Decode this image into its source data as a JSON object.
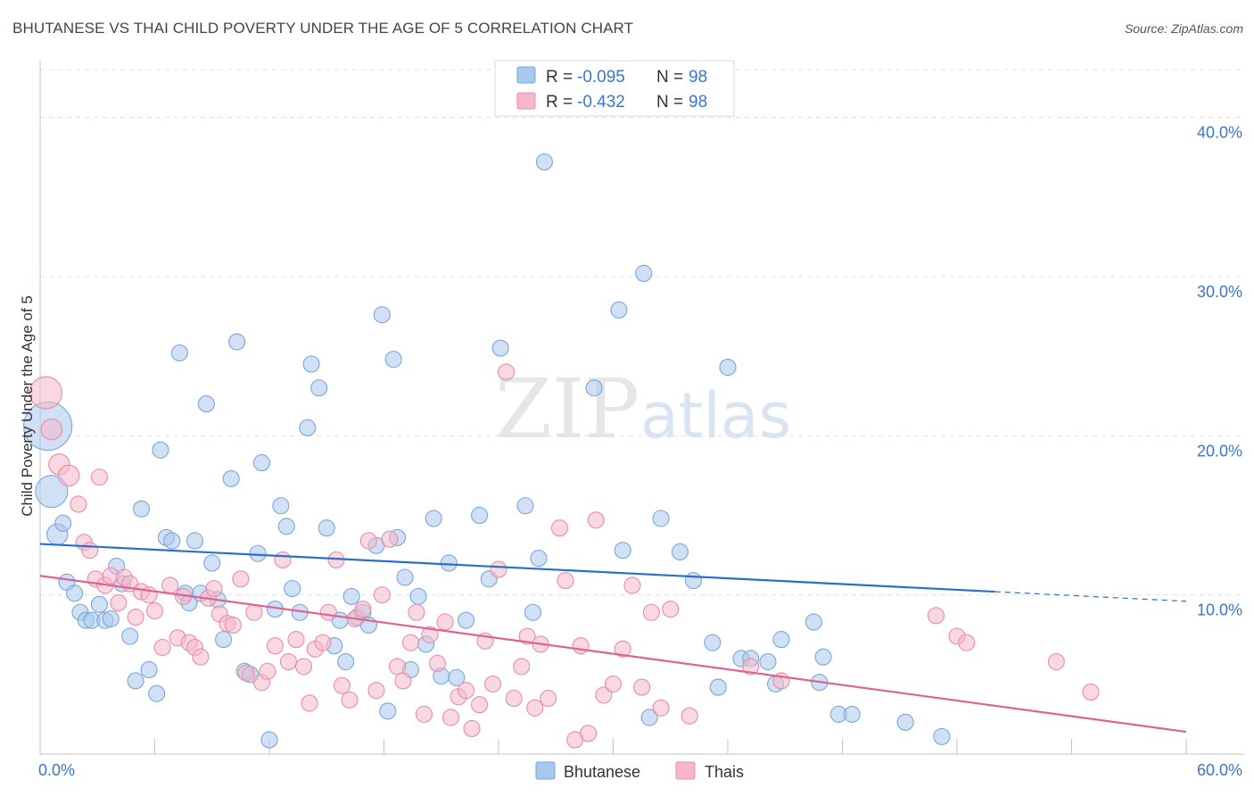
{
  "title": "BHUTANESE VS THAI CHILD POVERTY UNDER THE AGE OF 5 CORRELATION CHART",
  "source": "Source: ZipAtlas.com",
  "watermark": {
    "zip": "ZIP",
    "atlas": "atlas"
  },
  "colors": {
    "blue_fill": "#a9c8ee",
    "blue_stroke": "#7aa6da",
    "blue_line": "#2a6fc9",
    "pink_fill": "#f5b8cb",
    "pink_stroke": "#e98cab",
    "pink_line": "#e0638f",
    "tick_label": "#3a77c9",
    "grid": "#dde1e6",
    "axis": "#bfc4ca"
  },
  "legend_top": {
    "rows": [
      {
        "r_label": "R =",
        "r_value": "-0.095",
        "n_label": "N =",
        "n_value": "98",
        "series": "blue"
      },
      {
        "r_label": "R =",
        "r_value": "-0.432",
        "n_label": "N =",
        "n_value": "98",
        "series": "pink"
      }
    ]
  },
  "chart_data": {
    "type": "scatter",
    "title": "BHUTANESE VS THAI CHILD POVERTY UNDER THE AGE OF 5 CORRELATION CHART",
    "xlabel": "",
    "ylabel": "Child Poverty Under the Age of 5",
    "xlim": [
      0,
      60
    ],
    "ylim": [
      0,
      43
    ],
    "x_tick_labels": [
      "0.0%",
      "60.0%"
    ],
    "y_ticks": [
      10,
      20,
      30,
      40
    ],
    "y_tick_labels": [
      "10.0%",
      "20.0%",
      "30.0%",
      "40.0%"
    ],
    "grid": true,
    "legend_position": "bottom-center",
    "series": [
      {
        "name": "Bhutanese",
        "color": "#a9c8ee",
        "r": -0.095,
        "n": 98,
        "trend": {
          "x0": 0,
          "y0": 13.2,
          "x1": 50,
          "y1": 10.2,
          "dashed_to_x": 60,
          "dashed_to_y": 9.6
        },
        "points": [
          [
            0.4,
            20.6,
            3
          ],
          [
            0.6,
            16.5,
            2
          ],
          [
            0.9,
            13.8,
            1.3
          ],
          [
            1.2,
            14.5,
            1
          ],
          [
            1.4,
            10.8,
            1
          ],
          [
            1.8,
            10.1,
            1
          ],
          [
            2.1,
            8.9,
            1
          ],
          [
            2.4,
            8.4,
            1
          ],
          [
            2.7,
            8.4,
            1
          ],
          [
            3.1,
            9.4,
            1
          ],
          [
            3.4,
            8.4,
            1
          ],
          [
            3.7,
            8.5,
            1
          ],
          [
            4.0,
            11.8,
            1
          ],
          [
            4.3,
            10.7,
            1
          ],
          [
            4.7,
            7.4,
            1
          ],
          [
            5.0,
            4.6,
            1
          ],
          [
            5.3,
            15.4,
            1
          ],
          [
            5.7,
            5.3,
            1
          ],
          [
            6.1,
            3.8,
            1
          ],
          [
            6.3,
            19.1,
            1
          ],
          [
            6.6,
            13.6,
            1
          ],
          [
            6.9,
            13.4,
            1
          ],
          [
            7.3,
            25.2,
            1
          ],
          [
            7.6,
            10.1,
            1
          ],
          [
            7.8,
            9.5,
            1
          ],
          [
            8.1,
            13.4,
            1
          ],
          [
            8.4,
            10.1,
            1
          ],
          [
            8.7,
            22.0,
            1
          ],
          [
            9.0,
            12.0,
            1
          ],
          [
            9.3,
            9.7,
            1
          ],
          [
            9.6,
            7.2,
            1
          ],
          [
            10.0,
            17.3,
            1
          ],
          [
            10.3,
            25.9,
            1
          ],
          [
            10.7,
            5.2,
            1
          ],
          [
            11.0,
            5.0,
            1
          ],
          [
            11.4,
            12.6,
            1
          ],
          [
            11.6,
            18.3,
            1
          ],
          [
            12.0,
            0.9,
            1
          ],
          [
            12.3,
            9.1,
            1
          ],
          [
            12.6,
            15.6,
            1
          ],
          [
            12.9,
            14.3,
            1
          ],
          [
            13.2,
            10.4,
            1
          ],
          [
            13.6,
            8.9,
            1
          ],
          [
            14.0,
            20.5,
            1
          ],
          [
            14.2,
            24.5,
            1
          ],
          [
            14.6,
            23.0,
            1
          ],
          [
            15.0,
            14.2,
            1
          ],
          [
            15.4,
            6.8,
            1
          ],
          [
            15.7,
            8.4,
            1
          ],
          [
            16.0,
            5.8,
            1
          ],
          [
            16.3,
            9.9,
            1
          ],
          [
            16.6,
            8.6,
            1
          ],
          [
            16.9,
            8.9,
            1
          ],
          [
            17.2,
            8.1,
            1
          ],
          [
            17.6,
            13.1,
            1
          ],
          [
            17.9,
            27.6,
            1
          ],
          [
            18.2,
            2.7,
            1
          ],
          [
            18.5,
            24.8,
            1
          ],
          [
            18.7,
            13.6,
            1
          ],
          [
            19.1,
            11.1,
            1
          ],
          [
            19.4,
            5.3,
            1
          ],
          [
            19.8,
            9.9,
            1
          ],
          [
            20.2,
            6.9,
            1
          ],
          [
            20.6,
            14.8,
            1
          ],
          [
            21.0,
            4.9,
            1
          ],
          [
            21.4,
            12.0,
            1
          ],
          [
            21.8,
            4.8,
            1
          ],
          [
            22.3,
            8.4,
            1
          ],
          [
            23.0,
            15.0,
            1
          ],
          [
            23.5,
            11.0,
            1
          ],
          [
            24.1,
            25.5,
            1
          ],
          [
            25.4,
            15.6,
            1
          ],
          [
            25.8,
            8.9,
            1
          ],
          [
            26.1,
            12.3,
            1
          ],
          [
            26.4,
            37.2,
            1
          ],
          [
            29.0,
            23.0,
            1
          ],
          [
            30.3,
            27.9,
            1
          ],
          [
            30.5,
            12.8,
            1
          ],
          [
            31.6,
            30.2,
            1
          ],
          [
            31.9,
            2.3,
            1
          ],
          [
            32.5,
            14.8,
            1
          ],
          [
            33.5,
            12.7,
            1
          ],
          [
            34.2,
            10.9,
            1
          ],
          [
            35.2,
            7.0,
            1
          ],
          [
            35.5,
            4.2,
            1
          ],
          [
            36.0,
            24.3,
            1
          ],
          [
            36.7,
            6.0,
            1
          ],
          [
            37.2,
            6.0,
            1
          ],
          [
            38.1,
            5.8,
            1
          ],
          [
            38.5,
            4.4,
            1
          ],
          [
            38.8,
            7.2,
            1
          ],
          [
            40.5,
            8.3,
            1
          ],
          [
            41.0,
            6.1,
            1
          ],
          [
            40.8,
            4.5,
            1
          ],
          [
            41.8,
            2.5,
            1
          ],
          [
            42.5,
            2.5,
            1
          ],
          [
            45.3,
            2.0,
            1
          ],
          [
            47.2,
            1.1,
            1
          ]
        ]
      },
      {
        "name": "Thais",
        "color": "#f5b8cb",
        "r": -0.432,
        "n": 98,
        "trend": {
          "x0": 0,
          "y0": 11.2,
          "x1": 60,
          "y1": 1.4
        },
        "points": [
          [
            0.3,
            22.7,
            2
          ],
          [
            0.6,
            20.4,
            1.3
          ],
          [
            1.0,
            18.2,
            1.3
          ],
          [
            1.5,
            17.5,
            1.3
          ],
          [
            2.0,
            15.7,
            1
          ],
          [
            2.3,
            13.3,
            1
          ],
          [
            2.6,
            12.8,
            1
          ],
          [
            2.9,
            11.0,
            1
          ],
          [
            3.1,
            17.4,
            1
          ],
          [
            3.4,
            10.6,
            1
          ],
          [
            3.7,
            11.2,
            1
          ],
          [
            4.1,
            9.5,
            1
          ],
          [
            4.4,
            11.1,
            1
          ],
          [
            4.7,
            10.7,
            1
          ],
          [
            5.0,
            8.6,
            1
          ],
          [
            5.3,
            10.2,
            1
          ],
          [
            5.7,
            10.0,
            1
          ],
          [
            6.0,
            9.0,
            1
          ],
          [
            6.4,
            6.7,
            1
          ],
          [
            6.8,
            10.6,
            1
          ],
          [
            7.2,
            7.3,
            1
          ],
          [
            7.5,
            9.9,
            1
          ],
          [
            7.8,
            7.0,
            1
          ],
          [
            8.1,
            6.7,
            1
          ],
          [
            8.4,
            6.1,
            1
          ],
          [
            8.8,
            9.8,
            1
          ],
          [
            9.1,
            10.4,
            1
          ],
          [
            9.4,
            8.8,
            1
          ],
          [
            9.8,
            8.2,
            1
          ],
          [
            10.1,
            8.1,
            1
          ],
          [
            10.5,
            11.0,
            1
          ],
          [
            10.8,
            5.1,
            1
          ],
          [
            11.2,
            8.9,
            1
          ],
          [
            11.6,
            4.5,
            1
          ],
          [
            11.9,
            5.2,
            1
          ],
          [
            12.3,
            6.8,
            1
          ],
          [
            12.7,
            12.2,
            1
          ],
          [
            13.0,
            5.8,
            1
          ],
          [
            13.4,
            7.2,
            1
          ],
          [
            13.8,
            5.5,
            1
          ],
          [
            14.1,
            3.2,
            1
          ],
          [
            14.4,
            6.6,
            1
          ],
          [
            14.8,
            7.0,
            1
          ],
          [
            15.1,
            8.9,
            1
          ],
          [
            15.5,
            12.2,
            1
          ],
          [
            15.8,
            4.3,
            1
          ],
          [
            16.2,
            3.4,
            1
          ],
          [
            16.5,
            8.5,
            1
          ],
          [
            16.9,
            9.1,
            1
          ],
          [
            17.2,
            13.4,
            1
          ],
          [
            17.6,
            4.0,
            1
          ],
          [
            17.9,
            10.0,
            1
          ],
          [
            18.3,
            13.5,
            1
          ],
          [
            18.7,
            5.5,
            1
          ],
          [
            19.0,
            4.6,
            1
          ],
          [
            19.4,
            7.0,
            1
          ],
          [
            19.7,
            8.9,
            1
          ],
          [
            20.1,
            2.5,
            1
          ],
          [
            20.4,
            7.5,
            1
          ],
          [
            20.8,
            5.7,
            1
          ],
          [
            21.2,
            8.3,
            1
          ],
          [
            21.5,
            2.3,
            1
          ],
          [
            21.9,
            3.6,
            1
          ],
          [
            22.3,
            4.0,
            1
          ],
          [
            22.6,
            1.6,
            1
          ],
          [
            23.0,
            3.1,
            1
          ],
          [
            23.3,
            7.1,
            1
          ],
          [
            23.7,
            4.4,
            1
          ],
          [
            24.0,
            11.6,
            1
          ],
          [
            24.4,
            24.0,
            1
          ],
          [
            24.8,
            3.5,
            1
          ],
          [
            25.2,
            5.5,
            1
          ],
          [
            25.5,
            7.4,
            1
          ],
          [
            25.9,
            2.9,
            1
          ],
          [
            26.2,
            6.9,
            1
          ],
          [
            26.6,
            3.5,
            1
          ],
          [
            27.2,
            14.2,
            1
          ],
          [
            27.5,
            10.9,
            1
          ],
          [
            28.0,
            0.9,
            1
          ],
          [
            28.3,
            6.8,
            1
          ],
          [
            28.7,
            1.3,
            1
          ],
          [
            29.1,
            14.7,
            1
          ],
          [
            29.5,
            3.7,
            1
          ],
          [
            30.0,
            4.4,
            1
          ],
          [
            30.5,
            6.6,
            1
          ],
          [
            31.0,
            10.6,
            1
          ],
          [
            31.5,
            4.2,
            1
          ],
          [
            32.0,
            8.9,
            1
          ],
          [
            32.5,
            2.9,
            1
          ],
          [
            33.0,
            9.1,
            1
          ],
          [
            34.0,
            2.4,
            1
          ],
          [
            37.2,
            5.5,
            1
          ],
          [
            38.8,
            4.6,
            1
          ],
          [
            46.9,
            8.7,
            1
          ],
          [
            48.0,
            7.4,
            1
          ],
          [
            48.5,
            7.0,
            1
          ],
          [
            53.2,
            5.8,
            1
          ],
          [
            55.0,
            3.9,
            1
          ]
        ]
      }
    ]
  }
}
